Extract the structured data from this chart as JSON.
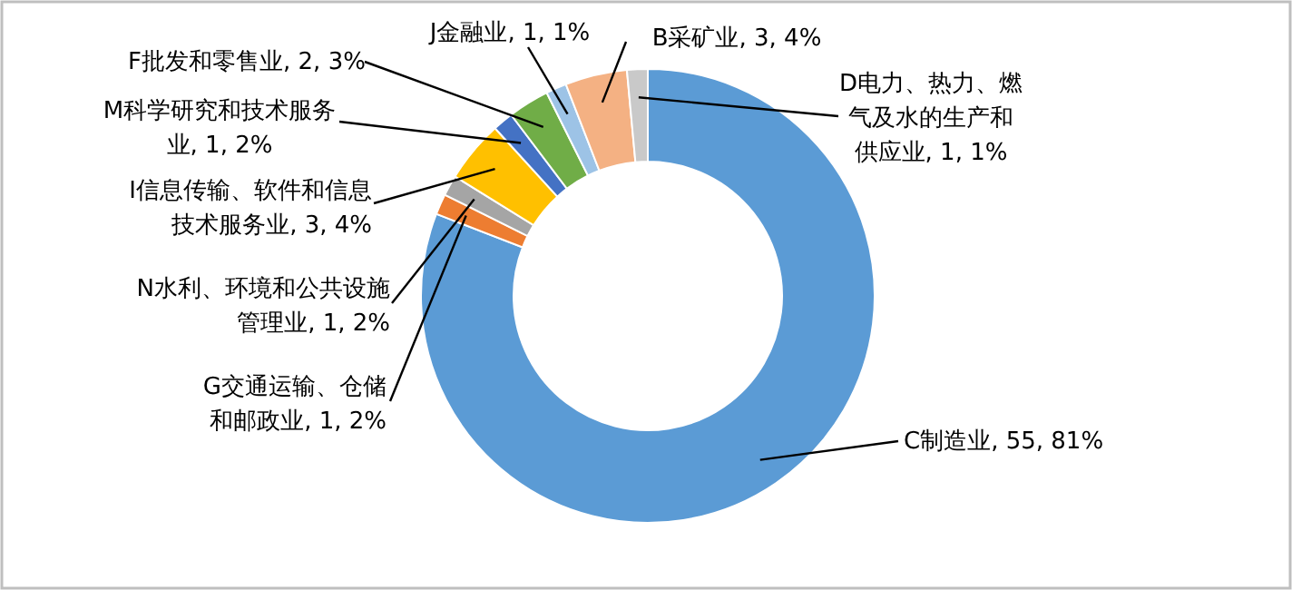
{
  "chart_data": {
    "type": "donut",
    "categories": [
      "C制造业",
      "G交通运输、仓储和邮政业",
      "N水利、环境和公共设施管理业",
      "I信息传输、软件和信息技术服务业",
      "M科学研究和技术服务业",
      "F批发和零售业",
      "J金融业",
      "B采矿业",
      "D电力、热力、燃气及水的生产和供应业"
    ],
    "values": [
      55,
      1,
      1,
      3,
      1,
      2,
      1,
      3,
      1
    ],
    "colors": [
      "#5b9bd5",
      "#ed7d31",
      "#a5a5a5",
      "#ffc000",
      "#4472c4",
      "#70ad47",
      "#9dc3e6",
      "#f4b183",
      "#c9c9c9"
    ],
    "value_labels": [
      "55, 81%",
      "1, 2%",
      "1, 2%",
      "3, 4%",
      "1, 2%",
      "2, 3%",
      "1, 1%",
      "3, 4%",
      "1, 1%"
    ]
  }
}
